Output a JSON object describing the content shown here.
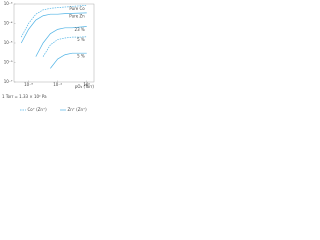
{
  "chart_data": {
    "type": "line",
    "log_x": true,
    "log_y": true,
    "color": "#4fb3e6",
    "x": [
      1e-09,
      1e-08,
      1e-07,
      1e-06,
      1e-05,
      0.0001,
      0.001,
      0.01,
      0.1,
      1
    ],
    "xlim": [
      1e-10,
      10
    ],
    "xticks": [
      {
        "value": 1e-08,
        "label": "10⁻⁸"
      },
      {
        "value": 0.0001,
        "label": "10⁻⁴"
      },
      {
        "value": 1,
        "label": "10⁰"
      }
    ],
    "ylim": [
      1e-07,
      0.001
    ],
    "yticks": [
      {
        "value": 0.001,
        "label": "10⁻³"
      },
      {
        "value": 0.0001,
        "label": "10⁻⁴"
      },
      {
        "value": 1e-05,
        "label": "10⁻⁵"
      },
      {
        "value": 1e-06,
        "label": "10⁻⁶"
      },
      {
        "value": 1e-07,
        "label": "10⁻⁷"
      }
    ],
    "xlabel": "pO₂ (Torr)",
    "note": "1 Torr = 1.33 × 10² Pa",
    "series": [
      {
        "name": "Pure Co",
        "dash": true,
        "values": [
          2e-05,
          0.0001,
          0.0003,
          0.0005,
          0.0006,
          0.00065,
          0.0007,
          0.00075,
          0.0008,
          0.00085
        ]
      },
      {
        "name": "Pure Zn",
        "dash": false,
        "values": [
          1e-05,
          5e-05,
          0.00015,
          0.00025,
          0.0003,
          0.0003,
          0.00032,
          0.00033,
          0.00034,
          0.00035
        ]
      },
      {
        "name": "23 %",
        "dash": false,
        "values": [
          null,
          null,
          2e-06,
          1e-05,
          3e-05,
          5e-05,
          6e-05,
          6e-05,
          6.5e-05,
          7e-05
        ]
      },
      {
        "name": "5 %",
        "dash": true,
        "values": [
          null,
          null,
          null,
          2e-06,
          8e-06,
          1.5e-05,
          1.8e-05,
          2e-05,
          2e-05,
          2.1e-05
        ]
      },
      {
        "name": "5 %",
        "dash": false,
        "values": [
          null,
          null,
          null,
          null,
          5e-07,
          1.5e-06,
          2.5e-06,
          3e-06,
          3e-06,
          3e-06
        ]
      }
    ],
    "legend": [
      {
        "label": "Co⁺ (Zn⁺)",
        "dash": true
      },
      {
        "label": "Zn⁺ (Zn⁺)",
        "dash": false
      }
    ]
  }
}
